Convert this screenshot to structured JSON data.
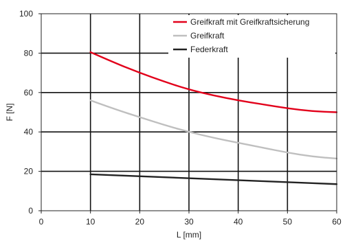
{
  "chart_data": {
    "type": "line",
    "xlabel": "L [mm]",
    "ylabel": "F [N]",
    "xlim": [
      0,
      60
    ],
    "ylim": [
      0,
      100
    ],
    "xticks": [
      0,
      10,
      20,
      30,
      40,
      50,
      60
    ],
    "yticks": [
      0,
      20,
      40,
      60,
      80,
      100
    ],
    "grid": true,
    "legend_position": "top-right",
    "series": [
      {
        "name": "Greifkraft mit Greifkraftsicherung",
        "color": "#e2001a",
        "x": [
          10,
          15,
          20,
          25,
          30,
          35,
          40,
          45,
          50,
          55,
          60
        ],
        "y": [
          80.5,
          75,
          70,
          65.5,
          61.5,
          58.5,
          56,
          54,
          52,
          50.5,
          50
        ]
      },
      {
        "name": "Greifkraft",
        "color": "#bfbfbf",
        "x": [
          10,
          15,
          20,
          25,
          30,
          35,
          40,
          45,
          50,
          55,
          60
        ],
        "y": [
          56,
          51.5,
          47.5,
          43.5,
          40,
          37,
          34.5,
          32,
          29.5,
          27.5,
          26.5
        ]
      },
      {
        "name": "Federkraft",
        "color": "#222222",
        "x": [
          10,
          20,
          30,
          40,
          50,
          60
        ],
        "y": [
          18.5,
          17.5,
          16.5,
          15.5,
          14.5,
          13.5
        ]
      }
    ]
  }
}
